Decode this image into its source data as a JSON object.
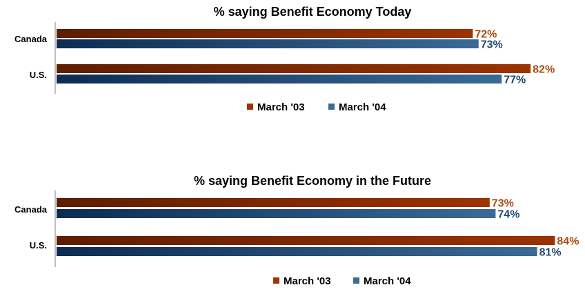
{
  "colors": {
    "march03_light": "#9c3300",
    "march03_dark": "#5e1e00",
    "march04_light": "#3a6a96",
    "march04_dark": "#0c2c52",
    "label03": "#a94b14",
    "label04": "#1f4670",
    "axis": "#7f7f7f",
    "text": "#000000"
  },
  "chart_data": [
    {
      "type": "bar",
      "orientation": "horizontal",
      "title": "% saying Benefit Economy Today",
      "categories": [
        "Canada",
        "U.S."
      ],
      "series": [
        {
          "name": "March '03",
          "values": [
            72,
            82
          ],
          "labels": [
            "72%",
            "82%"
          ]
        },
        {
          "name": "March '04",
          "values": [
            73,
            77
          ],
          "labels": [
            "73%",
            "77%"
          ]
        }
      ],
      "xlim": [
        0,
        100
      ],
      "legend_position": "bottom",
      "grid": false
    },
    {
      "type": "bar",
      "orientation": "horizontal",
      "title": "% saying Benefit Economy in the Future",
      "categories": [
        "Canada",
        "U.S."
      ],
      "series": [
        {
          "name": "March '03",
          "values": [
            73,
            84
          ],
          "labels": [
            "73%",
            "84%"
          ]
        },
        {
          "name": "March '04",
          "values": [
            74,
            81
          ],
          "labels": [
            "74%",
            "81%"
          ]
        }
      ],
      "xlim": [
        0,
        100
      ],
      "legend_position": "bottom",
      "grid": false
    }
  ]
}
